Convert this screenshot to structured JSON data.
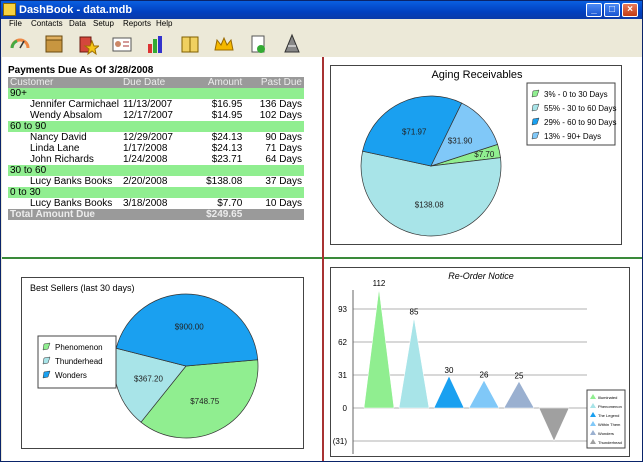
{
  "window": {
    "title": "DashBook - data.mdb"
  },
  "menu": [
    "File",
    "Contacts",
    "Data",
    "Setup",
    "Reports",
    "Help"
  ],
  "toolbar_icons": [
    "gauge-icon",
    "box-icon",
    "book-star-icon",
    "id-card-icon",
    "bar-chart-icon",
    "books-icon",
    "crown-icon",
    "document-icon",
    "party-hat-icon"
  ],
  "payments": {
    "title": "Payments Due As Of 3/28/2008",
    "headers": [
      "Customer",
      "Due Date",
      "Amount",
      "Past Due"
    ],
    "groups": [
      {
        "label": "90+",
        "rows": [
          [
            "Jennifer Carmichael",
            "11/13/2007",
            "$16.95",
            "136 Days"
          ],
          [
            "Wendy Absalom",
            "12/17/2007",
            "$14.95",
            "102 Days"
          ]
        ]
      },
      {
        "label": "60 to 90",
        "rows": [
          [
            "Nancy David",
            "12/29/2007",
            "$24.13",
            "90 Days"
          ],
          [
            "Linda Lane",
            "1/17/2008",
            "$24.13",
            "71 Days"
          ],
          [
            "John Richards",
            "1/24/2008",
            "$23.71",
            "64 Days"
          ]
        ]
      },
      {
        "label": "30 to 60",
        "rows": [
          [
            "Lucy Banks Books",
            "2/20/2008",
            "$138.08",
            "37 Days"
          ]
        ]
      },
      {
        "label": "0 to 30",
        "rows": [
          [
            "Lucy Banks Books",
            "3/18/2008",
            "$7.70",
            "10 Days"
          ]
        ]
      }
    ],
    "total_label": "Total Amount Due",
    "total_value": "$249.65"
  },
  "chart_data": [
    {
      "type": "pie",
      "title": "Aging Receivables",
      "slices": [
        {
          "label": "$7.70",
          "value": 7.7,
          "color": "#90ee90"
        },
        {
          "label": "$138.08",
          "value": 138.08,
          "color": "#a8e4e8"
        },
        {
          "label": "$71.97",
          "value": 71.97,
          "color": "#1aa0f0"
        },
        {
          "label": "$31.90",
          "value": 31.9,
          "color": "#80c8f8"
        }
      ],
      "legend": [
        {
          "label": "3% - 0 to 30 Days",
          "color": "#90ee90"
        },
        {
          "label": "55% - 30 to 60 Days",
          "color": "#a8e4e8"
        },
        {
          "label": "29% - 60 to 90 Days",
          "color": "#1aa0f0"
        },
        {
          "label": "13% - 90+ Days",
          "color": "#80c8f8"
        }
      ],
      "legend_position": "right"
    },
    {
      "type": "pie",
      "title": "Best Sellers (last 30 days)",
      "slices": [
        {
          "label": "$748.75",
          "value": 748.75,
          "color": "#90ee90"
        },
        {
          "label": "$367.20",
          "value": 367.2,
          "color": "#a8e4e8"
        },
        {
          "label": "$900.00",
          "value": 900.0,
          "color": "#1aa0f0"
        }
      ],
      "legend": [
        {
          "label": "Phenomenon",
          "color": "#90ee90"
        },
        {
          "label": "Thunderhead",
          "color": "#a8e4e8"
        },
        {
          "label": "Wonders",
          "color": "#1aa0f0"
        }
      ],
      "legend_position": "left"
    },
    {
      "type": "bar",
      "title": "Re-Order Notice",
      "categories": [
        "Illuminated",
        "Phenomenon",
        "The Legend",
        "Within Them",
        "Wonders",
        "Thunderhead"
      ],
      "values": [
        112,
        85,
        30,
        26,
        25,
        -31
      ],
      "value_labels": [
        "112",
        "85",
        "30",
        "26",
        "25",
        ""
      ],
      "colors": [
        "#90ee90",
        "#a8e4e8",
        "#1aa0f0",
        "#80c8f8",
        "#9ab0d0",
        "#a0a0a0"
      ],
      "yticks": [
        "93",
        "62",
        "31",
        "0",
        "(31)"
      ],
      "ytick_values": [
        93,
        62,
        31,
        0,
        -31
      ],
      "ylim": [
        -31,
        124
      ],
      "legend_position": "bottom-right"
    }
  ]
}
